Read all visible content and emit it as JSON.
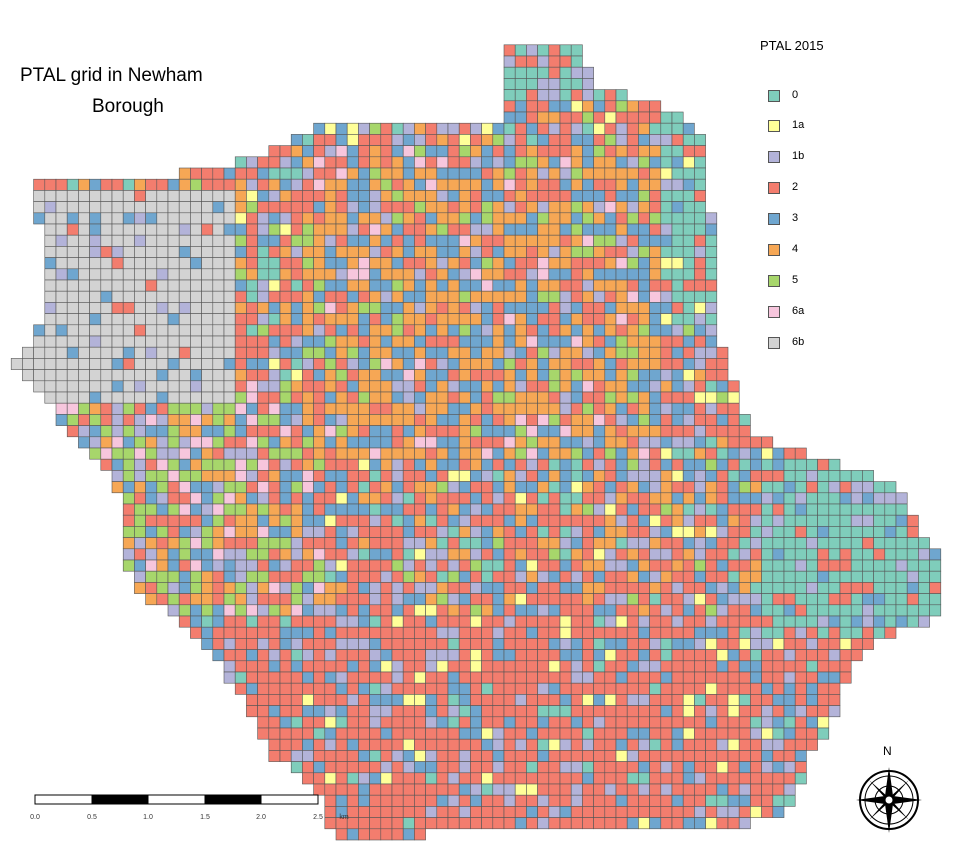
{
  "title_line1": "PTAL grid in Newham",
  "title_line2": "Borough",
  "legend": {
    "title": "PTAL 2015",
    "items": [
      {
        "label": "0",
        "color": "#7fcdbb"
      },
      {
        "label": "1a",
        "color": "#ffff99"
      },
      {
        "label": "1b",
        "color": "#b3b3d9"
      },
      {
        "label": "2",
        "color": "#f37d6e"
      },
      {
        "label": "3",
        "color": "#6fa6cf"
      },
      {
        "label": "4",
        "color": "#f6a755"
      },
      {
        "label": "5",
        "color": "#a7d66b"
      },
      {
        "label": "6a",
        "color": "#f7c6dd"
      },
      {
        "label": "6b",
        "color": "#d3d3d3"
      }
    ]
  },
  "scale_bar": {
    "labels": [
      "0.0",
      "0.5",
      "1.0",
      "1.5",
      "2.0",
      "2.5"
    ],
    "unit": "km"
  },
  "north_arrow": {
    "label": "N",
    "icon": "compass-rose-icon"
  }
}
